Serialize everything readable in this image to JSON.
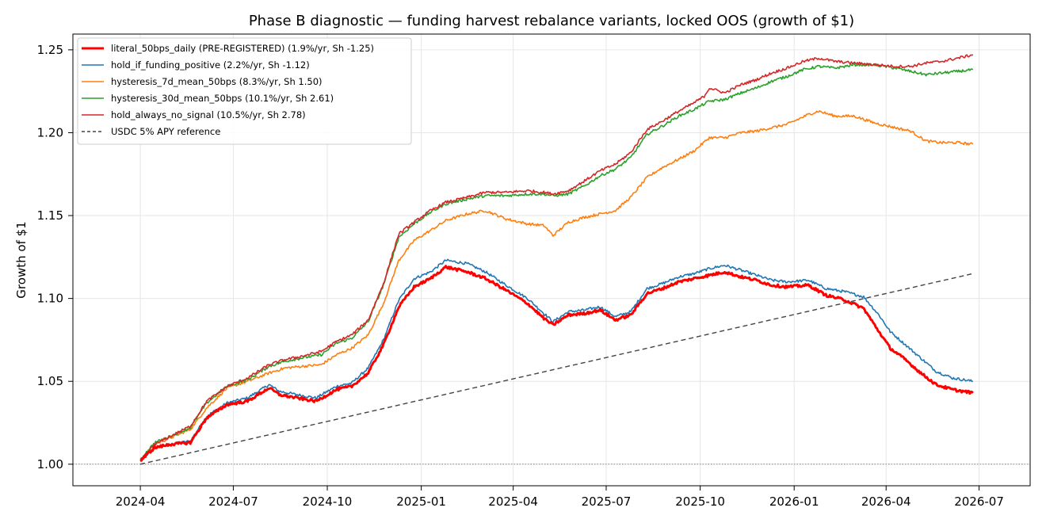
{
  "chart_data": {
    "type": "line",
    "title": "Phase B diagnostic — funding harvest rebalance variants, locked OOS (growth of $1)",
    "ylabel": "Growth of $1",
    "xlabel": "",
    "xlim": [
      "2024-01-26",
      "2026-08-20"
    ],
    "ylim": [
      0.987,
      1.2595
    ],
    "x_ticks": [
      "2024-04",
      "2024-07",
      "2024-10",
      "2025-01",
      "2025-04",
      "2025-07",
      "2025-10",
      "2026-01",
      "2026-04",
      "2026-07"
    ],
    "y_ticks": [
      "1.00",
      "1.05",
      "1.10",
      "1.15",
      "1.20",
      "1.25"
    ],
    "grid": true,
    "legend_position": "top-left",
    "baseline": 1.0,
    "series": [
      {
        "name": "literal_50bps_daily (PRE-REGISTERED) (1.9%/yr, Sh -1.25)",
        "color": "#ff0000",
        "width": 3,
        "dash": "",
        "points": [
          [
            "2024-04-01",
            1.002
          ],
          [
            "2024-04-15",
            1.01
          ],
          [
            "2024-05-01",
            1.012
          ],
          [
            "2024-05-20",
            1.013
          ],
          [
            "2024-06-05",
            1.028
          ],
          [
            "2024-06-25",
            1.036
          ],
          [
            "2024-07-15",
            1.038
          ],
          [
            "2024-08-05",
            1.046
          ],
          [
            "2024-08-15",
            1.042
          ],
          [
            "2024-09-01",
            1.04
          ],
          [
            "2024-09-20",
            1.038
          ],
          [
            "2024-10-10",
            1.045
          ],
          [
            "2024-10-25",
            1.047
          ],
          [
            "2024-11-10",
            1.055
          ],
          [
            "2024-11-25",
            1.072
          ],
          [
            "2024-12-10",
            1.095
          ],
          [
            "2024-12-25",
            1.107
          ],
          [
            "2025-01-10",
            1.112
          ],
          [
            "2025-01-25",
            1.119
          ],
          [
            "2025-02-15",
            1.116
          ],
          [
            "2025-03-05",
            1.112
          ],
          [
            "2025-03-25",
            1.105
          ],
          [
            "2025-04-15",
            1.097
          ],
          [
            "2025-05-01",
            1.088
          ],
          [
            "2025-05-10",
            1.084
          ],
          [
            "2025-05-25",
            1.09
          ],
          [
            "2025-06-10",
            1.091
          ],
          [
            "2025-06-25",
            1.093
          ],
          [
            "2025-07-10",
            1.087
          ],
          [
            "2025-07-25",
            1.09
          ],
          [
            "2025-08-10",
            1.103
          ],
          [
            "2025-08-25",
            1.106
          ],
          [
            "2025-09-10",
            1.11
          ],
          [
            "2025-09-25",
            1.112
          ],
          [
            "2025-10-10",
            1.114
          ],
          [
            "2025-10-25",
            1.116
          ],
          [
            "2025-11-10",
            1.113
          ],
          [
            "2025-11-25",
            1.111
          ],
          [
            "2025-12-10",
            1.108
          ],
          [
            "2025-12-25",
            1.107
          ],
          [
            "2026-01-15",
            1.108
          ],
          [
            "2026-02-01",
            1.102
          ],
          [
            "2026-02-20",
            1.099
          ],
          [
            "2026-03-10",
            1.094
          ],
          [
            "2026-03-25",
            1.08
          ],
          [
            "2026-04-05",
            1.07
          ],
          [
            "2026-04-20",
            1.063
          ],
          [
            "2026-05-05",
            1.055
          ],
          [
            "2026-05-20",
            1.048
          ],
          [
            "2026-06-05",
            1.045
          ],
          [
            "2026-06-25",
            1.043
          ]
        ]
      },
      {
        "name": "hold_if_funding_positive (2.2%/yr, Sh -1.12)",
        "color": "#1f77b4",
        "width": 1.6,
        "dash": "",
        "points": [
          [
            "2024-04-01",
            1.002
          ],
          [
            "2024-04-15",
            1.01
          ],
          [
            "2024-05-01",
            1.012
          ],
          [
            "2024-05-20",
            1.014
          ],
          [
            "2024-06-05",
            1.029
          ],
          [
            "2024-06-25",
            1.037
          ],
          [
            "2024-07-15",
            1.04
          ],
          [
            "2024-08-05",
            1.048
          ],
          [
            "2024-08-15",
            1.044
          ],
          [
            "2024-09-01",
            1.042
          ],
          [
            "2024-09-20",
            1.04
          ],
          [
            "2024-10-10",
            1.047
          ],
          [
            "2024-10-25",
            1.049
          ],
          [
            "2024-11-10",
            1.058
          ],
          [
            "2024-11-25",
            1.075
          ],
          [
            "2024-12-10",
            1.099
          ],
          [
            "2024-12-25",
            1.112
          ],
          [
            "2025-01-10",
            1.116
          ],
          [
            "2025-01-25",
            1.123
          ],
          [
            "2025-02-15",
            1.121
          ],
          [
            "2025-03-05",
            1.116
          ],
          [
            "2025-03-25",
            1.108
          ],
          [
            "2025-04-15",
            1.1
          ],
          [
            "2025-05-01",
            1.091
          ],
          [
            "2025-05-10",
            1.086
          ],
          [
            "2025-05-25",
            1.092
          ],
          [
            "2025-06-10",
            1.093
          ],
          [
            "2025-06-25",
            1.095
          ],
          [
            "2025-07-10",
            1.089
          ],
          [
            "2025-07-25",
            1.092
          ],
          [
            "2025-08-10",
            1.106
          ],
          [
            "2025-08-25",
            1.109
          ],
          [
            "2025-09-10",
            1.113
          ],
          [
            "2025-09-25",
            1.115
          ],
          [
            "2025-10-10",
            1.118
          ],
          [
            "2025-10-25",
            1.12
          ],
          [
            "2025-11-10",
            1.117
          ],
          [
            "2025-11-25",
            1.114
          ],
          [
            "2025-12-10",
            1.111
          ],
          [
            "2025-12-25",
            1.11
          ],
          [
            "2026-01-15",
            1.111
          ],
          [
            "2026-02-01",
            1.106
          ],
          [
            "2026-02-20",
            1.104
          ],
          [
            "2026-03-10",
            1.101
          ],
          [
            "2026-03-25",
            1.09
          ],
          [
            "2026-04-05",
            1.08
          ],
          [
            "2026-04-20",
            1.072
          ],
          [
            "2026-05-05",
            1.064
          ],
          [
            "2026-05-20",
            1.056
          ],
          [
            "2026-06-05",
            1.052
          ],
          [
            "2026-06-25",
            1.05
          ]
        ]
      },
      {
        "name": "hysteresis_7d_mean_50bps (8.3%/yr, Sh 1.50)",
        "color": "#ff7f0e",
        "width": 1.6,
        "dash": "",
        "points": [
          [
            "2024-04-01",
            1.003
          ],
          [
            "2024-04-15",
            1.012
          ],
          [
            "2024-05-01",
            1.016
          ],
          [
            "2024-05-20",
            1.021
          ],
          [
            "2024-06-05",
            1.034
          ],
          [
            "2024-06-25",
            1.046
          ],
          [
            "2024-07-15",
            1.05
          ],
          [
            "2024-08-05",
            1.055
          ],
          [
            "2024-08-20",
            1.058
          ],
          [
            "2024-09-05",
            1.059
          ],
          [
            "2024-09-25",
            1.06
          ],
          [
            "2024-10-10",
            1.066
          ],
          [
            "2024-10-25",
            1.07
          ],
          [
            "2024-11-10",
            1.078
          ],
          [
            "2024-11-25",
            1.097
          ],
          [
            "2024-12-10",
            1.123
          ],
          [
            "2024-12-25",
            1.135
          ],
          [
            "2025-01-10",
            1.141
          ],
          [
            "2025-01-25",
            1.147
          ],
          [
            "2025-02-15",
            1.151
          ],
          [
            "2025-03-05",
            1.153
          ],
          [
            "2025-03-25",
            1.148
          ],
          [
            "2025-04-15",
            1.145
          ],
          [
            "2025-05-01",
            1.144
          ],
          [
            "2025-05-10",
            1.138
          ],
          [
            "2025-05-25",
            1.146
          ],
          [
            "2025-06-10",
            1.149
          ],
          [
            "2025-06-25",
            1.151
          ],
          [
            "2025-07-10",
            1.153
          ],
          [
            "2025-07-25",
            1.161
          ],
          [
            "2025-08-10",
            1.173
          ],
          [
            "2025-08-25",
            1.179
          ],
          [
            "2025-09-10",
            1.184
          ],
          [
            "2025-09-25",
            1.189
          ],
          [
            "2025-10-10",
            1.197
          ],
          [
            "2025-10-25",
            1.197
          ],
          [
            "2025-11-10",
            1.2
          ],
          [
            "2025-11-25",
            1.201
          ],
          [
            "2025-12-10",
            1.203
          ],
          [
            "2025-12-25",
            1.205
          ],
          [
            "2026-01-15",
            1.211
          ],
          [
            "2026-01-25",
            1.213
          ],
          [
            "2026-02-10",
            1.21
          ],
          [
            "2026-03-01",
            1.21
          ],
          [
            "2026-03-20",
            1.206
          ],
          [
            "2026-04-10",
            1.203
          ],
          [
            "2026-04-25",
            1.201
          ],
          [
            "2026-05-10",
            1.195
          ],
          [
            "2026-05-25",
            1.194
          ],
          [
            "2026-06-10",
            1.194
          ],
          [
            "2026-06-25",
            1.193
          ]
        ]
      },
      {
        "name": "hysteresis_30d_mean_50bps (10.1%/yr, Sh 2.61)",
        "color": "#2ca02c",
        "width": 1.6,
        "dash": "",
        "points": [
          [
            "2024-04-01",
            1.003
          ],
          [
            "2024-04-15",
            1.013
          ],
          [
            "2024-05-01",
            1.017
          ],
          [
            "2024-05-20",
            1.022
          ],
          [
            "2024-06-05",
            1.037
          ],
          [
            "2024-06-25",
            1.047
          ],
          [
            "2024-07-15",
            1.051
          ],
          [
            "2024-08-05",
            1.059
          ],
          [
            "2024-08-20",
            1.062
          ],
          [
            "2024-09-05",
            1.064
          ],
          [
            "2024-09-25",
            1.066
          ],
          [
            "2024-10-10",
            1.073
          ],
          [
            "2024-10-25",
            1.076
          ],
          [
            "2024-11-10",
            1.086
          ],
          [
            "2024-11-25",
            1.108
          ],
          [
            "2024-12-10",
            1.137
          ],
          [
            "2024-12-25",
            1.145
          ],
          [
            "2025-01-10",
            1.152
          ],
          [
            "2025-01-25",
            1.157
          ],
          [
            "2025-02-15",
            1.16
          ],
          [
            "2025-03-05",
            1.162
          ],
          [
            "2025-03-25",
            1.162
          ],
          [
            "2025-04-15",
            1.163
          ],
          [
            "2025-05-01",
            1.163
          ],
          [
            "2025-05-10",
            1.162
          ],
          [
            "2025-05-25",
            1.163
          ],
          [
            "2025-06-10",
            1.168
          ],
          [
            "2025-06-25",
            1.174
          ],
          [
            "2025-07-10",
            1.178
          ],
          [
            "2025-07-25",
            1.185
          ],
          [
            "2025-08-10",
            1.199
          ],
          [
            "2025-08-25",
            1.204
          ],
          [
            "2025-09-10",
            1.21
          ],
          [
            "2025-09-25",
            1.214
          ],
          [
            "2025-10-10",
            1.219
          ],
          [
            "2025-10-25",
            1.22
          ],
          [
            "2025-11-10",
            1.224
          ],
          [
            "2025-11-25",
            1.227
          ],
          [
            "2025-12-10",
            1.231
          ],
          [
            "2025-12-25",
            1.234
          ],
          [
            "2026-01-10",
            1.238
          ],
          [
            "2026-01-25",
            1.24
          ],
          [
            "2026-02-10",
            1.239
          ],
          [
            "2026-03-01",
            1.241
          ],
          [
            "2026-03-20",
            1.241
          ],
          [
            "2026-04-10",
            1.239
          ],
          [
            "2026-04-25",
            1.237
          ],
          [
            "2026-05-10",
            1.235
          ],
          [
            "2026-05-25",
            1.236
          ],
          [
            "2026-06-10",
            1.237
          ],
          [
            "2026-06-25",
            1.238
          ]
        ]
      },
      {
        "name": "hold_always_no_signal (10.5%/yr, Sh 2.78)",
        "color": "#d62728",
        "width": 1.6,
        "dash": "",
        "points": [
          [
            "2024-04-01",
            1.002
          ],
          [
            "2024-04-15",
            1.012
          ],
          [
            "2024-05-01",
            1.017
          ],
          [
            "2024-05-20",
            1.023
          ],
          [
            "2024-06-05",
            1.038
          ],
          [
            "2024-06-25",
            1.047
          ],
          [
            "2024-07-15",
            1.052
          ],
          [
            "2024-08-05",
            1.06
          ],
          [
            "2024-08-20",
            1.063
          ],
          [
            "2024-09-05",
            1.065
          ],
          [
            "2024-09-25",
            1.068
          ],
          [
            "2024-10-10",
            1.074
          ],
          [
            "2024-10-25",
            1.078
          ],
          [
            "2024-11-10",
            1.087
          ],
          [
            "2024-11-25",
            1.109
          ],
          [
            "2024-12-10",
            1.139
          ],
          [
            "2024-12-25",
            1.146
          ],
          [
            "2025-01-10",
            1.153
          ],
          [
            "2025-01-25",
            1.158
          ],
          [
            "2025-02-15",
            1.161
          ],
          [
            "2025-03-05",
            1.164
          ],
          [
            "2025-03-25",
            1.164
          ],
          [
            "2025-04-15",
            1.165
          ],
          [
            "2025-05-01",
            1.164
          ],
          [
            "2025-05-10",
            1.163
          ],
          [
            "2025-05-25",
            1.165
          ],
          [
            "2025-06-10",
            1.171
          ],
          [
            "2025-06-25",
            1.177
          ],
          [
            "2025-07-10",
            1.181
          ],
          [
            "2025-07-25",
            1.188
          ],
          [
            "2025-08-10",
            1.202
          ],
          [
            "2025-08-25",
            1.207
          ],
          [
            "2025-09-10",
            1.213
          ],
          [
            "2025-09-25",
            1.218
          ],
          [
            "2025-10-05",
            1.222
          ],
          [
            "2025-10-10",
            1.227
          ],
          [
            "2025-10-25",
            1.224
          ],
          [
            "2025-11-10",
            1.229
          ],
          [
            "2025-11-25",
            1.232
          ],
          [
            "2025-12-10",
            1.236
          ],
          [
            "2025-12-25",
            1.239
          ],
          [
            "2026-01-10",
            1.243
          ],
          [
            "2026-01-25",
            1.245
          ],
          [
            "2026-02-10",
            1.243
          ],
          [
            "2026-03-01",
            1.242
          ],
          [
            "2026-03-20",
            1.241
          ],
          [
            "2026-04-10",
            1.24
          ],
          [
            "2026-04-25",
            1.24
          ],
          [
            "2026-05-10",
            1.242
          ],
          [
            "2026-05-25",
            1.243
          ],
          [
            "2026-06-10",
            1.245
          ],
          [
            "2026-06-25",
            1.247
          ]
        ]
      },
      {
        "name": "USDC 5% APY reference",
        "color": "#444444",
        "width": 1.4,
        "dash": "6,4",
        "points": [
          [
            "2024-04-01",
            1.0
          ],
          [
            "2026-06-25",
            1.115
          ]
        ]
      }
    ]
  }
}
